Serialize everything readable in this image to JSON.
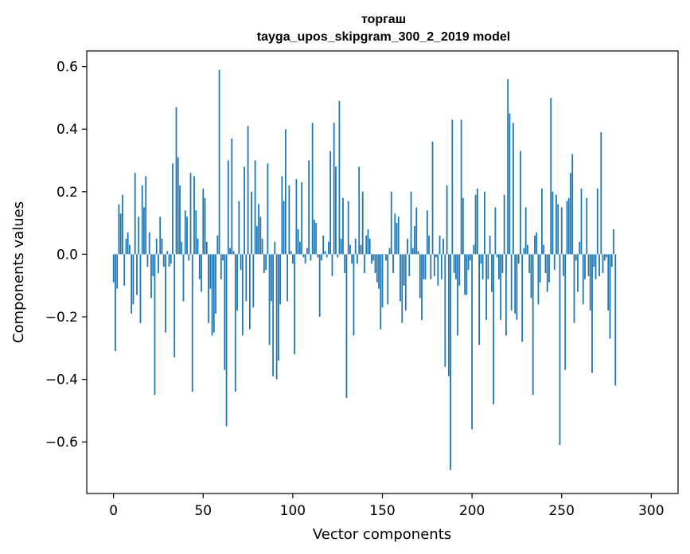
{
  "chart_data": {
    "type": "bar",
    "title_line1": "торгаш",
    "title_line2": "tayga_upos_skipgram_300_2_2019 model",
    "xlabel": "Vector components",
    "ylabel": "Components values",
    "xlim": [
      -14.95,
      314.95
    ],
    "ylim": [
      -0.765,
      0.65
    ],
    "x_ticks": [
      0,
      50,
      100,
      150,
      200,
      250,
      300
    ],
    "x_tick_labels": [
      "0",
      "50",
      "100",
      "150",
      "200",
      "250",
      "300"
    ],
    "y_ticks": [
      -0.6,
      -0.4,
      -0.2,
      0.0,
      0.2,
      0.4,
      0.6
    ],
    "y_tick_labels": [
      "−0.6",
      "−0.4",
      "−0.2",
      "0.0",
      "0.2",
      "0.4",
      "0.6"
    ],
    "bar_color": "#1f77b4",
    "values": [
      -0.09,
      -0.31,
      -0.11,
      0.16,
      0.13,
      0.19,
      -0.1,
      0.05,
      0.07,
      0.03,
      -0.19,
      -0.16,
      0.26,
      -0.13,
      0.12,
      -0.22,
      0.22,
      0.15,
      0.25,
      -0.04,
      0.07,
      -0.14,
      -0.07,
      -0.45,
      0.05,
      -0.06,
      0.12,
      0.05,
      -0.04,
      -0.25,
      0.01,
      -0.04,
      -0.03,
      0.29,
      -0.33,
      0.47,
      0.31,
      0.22,
      0.04,
      -0.15,
      0.14,
      0.12,
      -0.02,
      0.26,
      -0.44,
      0.25,
      0.14,
      0.05,
      -0.08,
      -0.12,
      0.21,
      0.18,
      0.04,
      -0.22,
      -0.11,
      -0.26,
      -0.25,
      -0.19,
      0.06,
      0.59,
      -0.08,
      -0.02,
      -0.37,
      -0.55,
      0.3,
      0.02,
      0.37,
      0.01,
      -0.44,
      -0.18,
      0.17,
      -0.05,
      -0.26,
      0.28,
      -0.15,
      0.41,
      -0.24,
      0.2,
      -0.17,
      0.3,
      0.09,
      0.16,
      0.12,
      0.05,
      -0.06,
      -0.05,
      0.29,
      -0.29,
      -0.15,
      -0.39,
      0.04,
      -0.4,
      -0.34,
      -0.16,
      0.25,
      0.17,
      0.4,
      -0.15,
      0.22,
      0.01,
      -0.03,
      -0.32,
      0.24,
      0.08,
      0.04,
      0.23,
      -0.01,
      -0.03,
      0.02,
      0.3,
      -0.02,
      0.42,
      0.11,
      0.1,
      -0.01,
      -0.2,
      -0.02,
      0.06,
      0.01,
      -0.01,
      0.04,
      0.33,
      -0.07,
      0.42,
      0.28,
      -0.01,
      0.49,
      0.05,
      0.18,
      -0.06,
      -0.46,
      0.17,
      0.03,
      -0.03,
      -0.26,
      0.05,
      -0.03,
      0.28,
      0.03,
      0.2,
      -0.06,
      0.06,
      0.08,
      0.05,
      -0.03,
      -0.02,
      -0.06,
      -0.09,
      -0.11,
      -0.24,
      -0.17,
      0.0,
      -0.02,
      -0.16,
      0.02,
      0.2,
      -0.06,
      0.13,
      0.1,
      0.12,
      -0.15,
      -0.22,
      -0.1,
      -0.18,
      0.05,
      -0.07,
      0.2,
      0.02,
      0.09,
      0.15,
      0.01,
      -0.14,
      -0.21,
      -0.08,
      -0.08,
      0.14,
      0.06,
      -0.08,
      0.36,
      -0.07,
      -0.01,
      -0.1,
      0.06,
      -0.08,
      0.05,
      -0.36,
      0.22,
      -0.39,
      -0.69,
      0.43,
      -0.06,
      -0.08,
      -0.26,
      -0.1,
      0.43,
      0.18,
      -0.13,
      -0.13,
      -0.05,
      -0.02,
      -0.56,
      0.03,
      0.19,
      0.21,
      -0.29,
      -0.03,
      -0.08,
      0.2,
      -0.21,
      -0.08,
      0.06,
      -0.12,
      -0.48,
      0.15,
      -0.01,
      -0.08,
      -0.21,
      -0.06,
      0.19,
      -0.26,
      0.56,
      0.45,
      -0.18,
      0.42,
      -0.19,
      -0.21,
      -0.03,
      0.33,
      -0.28,
      0.02,
      0.15,
      0.03,
      -0.06,
      -0.14,
      -0.45,
      0.06,
      0.07,
      -0.16,
      -0.09,
      0.21,
      0.03,
      -0.06,
      -0.12,
      -0.09,
      0.5,
      0.2,
      -0.05,
      0.19,
      0.16,
      -0.61,
      0.15,
      -0.07,
      -0.37,
      0.17,
      0.18,
      0.26,
      0.32,
      -0.22,
      -0.02,
      -0.12,
      0.04,
      0.21,
      -0.16,
      -0.08,
      0.18,
      -0.07,
      -0.18,
      -0.38,
      -0.04,
      -0.08,
      0.21,
      -0.07,
      0.39,
      -0.06,
      -0.02,
      -0.01,
      -0.18,
      -0.27,
      -0.04,
      0.08,
      -0.42
    ]
  }
}
